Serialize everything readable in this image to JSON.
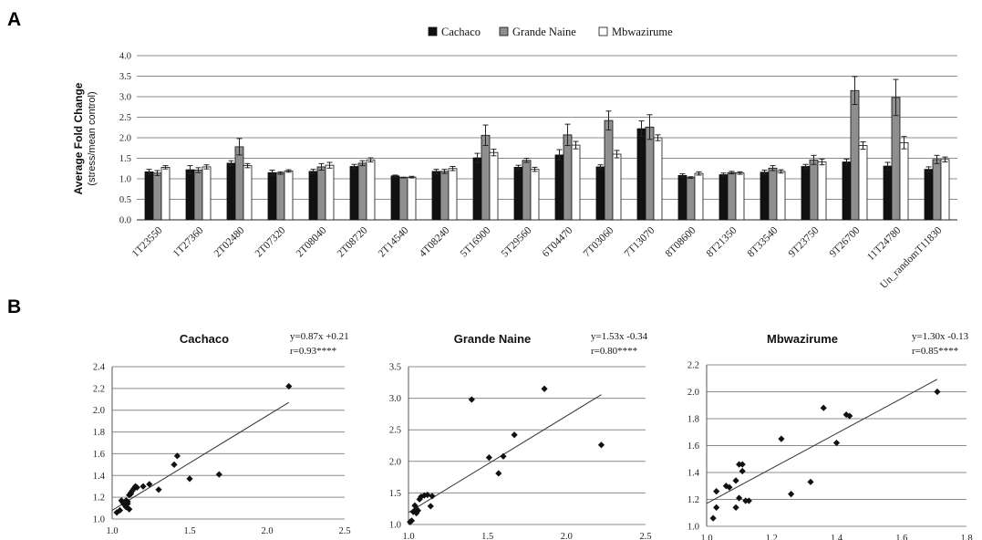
{
  "figure": {
    "panel_a": "A",
    "panel_b": "B"
  },
  "colors": {
    "Cachaco": "#111111",
    "Grande Naine": "#8f8f8f",
    "Mbwazirume": "#ffffff",
    "grid": "#8c8c8c"
  },
  "chart_data": [
    {
      "type": "bar",
      "ylabel": "Average Fold Change",
      "ylabel_sub": "(stress/mean control)",
      "ylim": [
        0,
        4.0
      ],
      "yticks": [
        "0.0",
        "0.5",
        "1.0",
        "1.5",
        "2.0",
        "2.5",
        "3.0",
        "3.5",
        "4.0"
      ],
      "grid": true,
      "legend_position": "top",
      "categories": [
        "1T23550",
        "1T27360",
        "2T02480",
        "2T07320",
        "2T08040",
        "2T08720",
        "2T14540",
        "4T08240",
        "5T16900",
        "5T29560",
        "6T04470",
        "7T03060",
        "7T13070",
        "8T08600",
        "8T21350",
        "8T33540",
        "9T23750",
        "9T26700",
        "11T24780",
        "Un_randomT11830"
      ],
      "series": [
        {
          "name": "Cachaco",
          "values": [
            1.17,
            1.22,
            1.38,
            1.15,
            1.18,
            1.3,
            1.07,
            1.18,
            1.51,
            1.28,
            1.58,
            1.29,
            2.22,
            1.08,
            1.1,
            1.16,
            1.3,
            1.41,
            1.31,
            1.23
          ],
          "errors": [
            0.06,
            0.1,
            0.06,
            0.06,
            0.05,
            0.05,
            0.02,
            0.05,
            0.11,
            0.05,
            0.13,
            0.05,
            0.19,
            0.04,
            0.04,
            0.05,
            0.05,
            0.07,
            0.09,
            0.06
          ]
        },
        {
          "name": "Grande Naine",
          "values": [
            1.14,
            1.21,
            1.78,
            1.14,
            1.29,
            1.38,
            1.03,
            1.18,
            2.06,
            1.45,
            2.07,
            2.42,
            2.26,
            1.03,
            1.15,
            1.26,
            1.46,
            3.15,
            2.98,
            1.47
          ],
          "errors": [
            0.06,
            0.06,
            0.2,
            0.03,
            0.08,
            0.06,
            0.01,
            0.05,
            0.25,
            0.05,
            0.26,
            0.23,
            0.3,
            0.02,
            0.03,
            0.06,
            0.11,
            0.34,
            0.44,
            0.1
          ]
        },
        {
          "name": "Mbwazirume",
          "values": [
            1.28,
            1.29,
            1.32,
            1.19,
            1.33,
            1.46,
            1.04,
            1.25,
            1.64,
            1.23,
            1.82,
            1.6,
            2.0,
            1.13,
            1.14,
            1.18,
            1.41,
            1.81,
            1.88,
            1.47
          ],
          "errors": [
            0.04,
            0.05,
            0.05,
            0.03,
            0.07,
            0.05,
            0.02,
            0.05,
            0.08,
            0.05,
            0.09,
            0.09,
            0.07,
            0.04,
            0.03,
            0.04,
            0.07,
            0.09,
            0.15,
            0.06
          ]
        }
      ]
    },
    {
      "type": "scatter",
      "title": "Cachaco",
      "equation": "y=0.87x +0.21",
      "r": "r=0.93****",
      "xlim": [
        1.0,
        2.5
      ],
      "ylim": [
        1.0,
        2.4
      ],
      "xticks": [
        "1.0",
        "1.5",
        "2.0",
        "2.5"
      ],
      "yticks": [
        "1.0",
        "1.2",
        "1.4",
        "1.6",
        "1.8",
        "2.0",
        "2.2",
        "2.4"
      ],
      "fit": {
        "slope": 0.87,
        "intercept": 0.21,
        "x_range": [
          1.0,
          2.14
        ]
      },
      "x": [
        1.03,
        1.05,
        1.06,
        1.07,
        1.08,
        1.09,
        1.09,
        1.1,
        1.1,
        1.11,
        1.11,
        1.12,
        1.12,
        1.13,
        1.14,
        1.15,
        1.16,
        1.2,
        1.24,
        1.3,
        1.4,
        1.42,
        1.5,
        1.69,
        2.14
      ],
      "y": [
        1.06,
        1.08,
        1.17,
        1.15,
        1.13,
        1.11,
        1.17,
        1.14,
        1.16,
        1.09,
        1.22,
        1.23,
        1.24,
        1.26,
        1.28,
        1.3,
        1.29,
        1.3,
        1.32,
        1.27,
        1.5,
        1.58,
        1.37,
        1.41,
        2.22
      ]
    },
    {
      "type": "scatter",
      "title": "Grande Naine",
      "equation": "y=1.53x -0.34",
      "r": "r=0.80****",
      "xlim": [
        1.0,
        2.5
      ],
      "ylim": [
        1.0,
        3.5
      ],
      "xticks": [
        "1.0",
        "1.5",
        "2.0",
        "2.5"
      ],
      "yticks": [
        "1.0",
        "1.5",
        "2.0",
        "2.5",
        "3.0",
        "3.5"
      ],
      "fit": {
        "slope": 1.53,
        "intercept": -0.34,
        "x_range": [
          1.0,
          2.22
        ]
      },
      "x": [
        1.01,
        1.02,
        1.03,
        1.04,
        1.05,
        1.05,
        1.06,
        1.07,
        1.08,
        1.1,
        1.12,
        1.14,
        1.15,
        1.4,
        1.51,
        1.57,
        1.6,
        1.67,
        1.86,
        2.22
      ],
      "y": [
        1.04,
        1.06,
        1.2,
        1.3,
        1.18,
        1.25,
        1.22,
        1.4,
        1.44,
        1.46,
        1.47,
        1.29,
        1.45,
        2.98,
        2.06,
        1.81,
        2.08,
        2.42,
        3.15,
        2.26
      ]
    },
    {
      "type": "scatter",
      "title": "Mbwazirume",
      "equation": "y=1.30x -0.13",
      "r": "r=0.85****",
      "xlim": [
        1.0,
        1.8
      ],
      "ylim": [
        1.0,
        2.2
      ],
      "xticks": [
        "1.0",
        "1.2",
        "1.4",
        "1.6",
        "1.8"
      ],
      "yticks": [
        "1.0",
        "1.2",
        "1.4",
        "1.6",
        "1.8",
        "2.0",
        "2.2"
      ],
      "fit": {
        "slope": 1.3,
        "intercept": -0.13,
        "x_range": [
          1.0,
          1.71
        ]
      },
      "x": [
        1.02,
        1.03,
        1.03,
        1.06,
        1.07,
        1.09,
        1.09,
        1.1,
        1.1,
        1.11,
        1.11,
        1.12,
        1.13,
        1.23,
        1.26,
        1.32,
        1.36,
        1.4,
        1.43,
        1.44,
        1.71
      ],
      "y": [
        1.06,
        1.14,
        1.26,
        1.3,
        1.29,
        1.14,
        1.34,
        1.46,
        1.21,
        1.46,
        1.41,
        1.19,
        1.19,
        1.65,
        1.24,
        1.33,
        1.88,
        1.62,
        1.83,
        1.82,
        2.0
      ]
    }
  ]
}
